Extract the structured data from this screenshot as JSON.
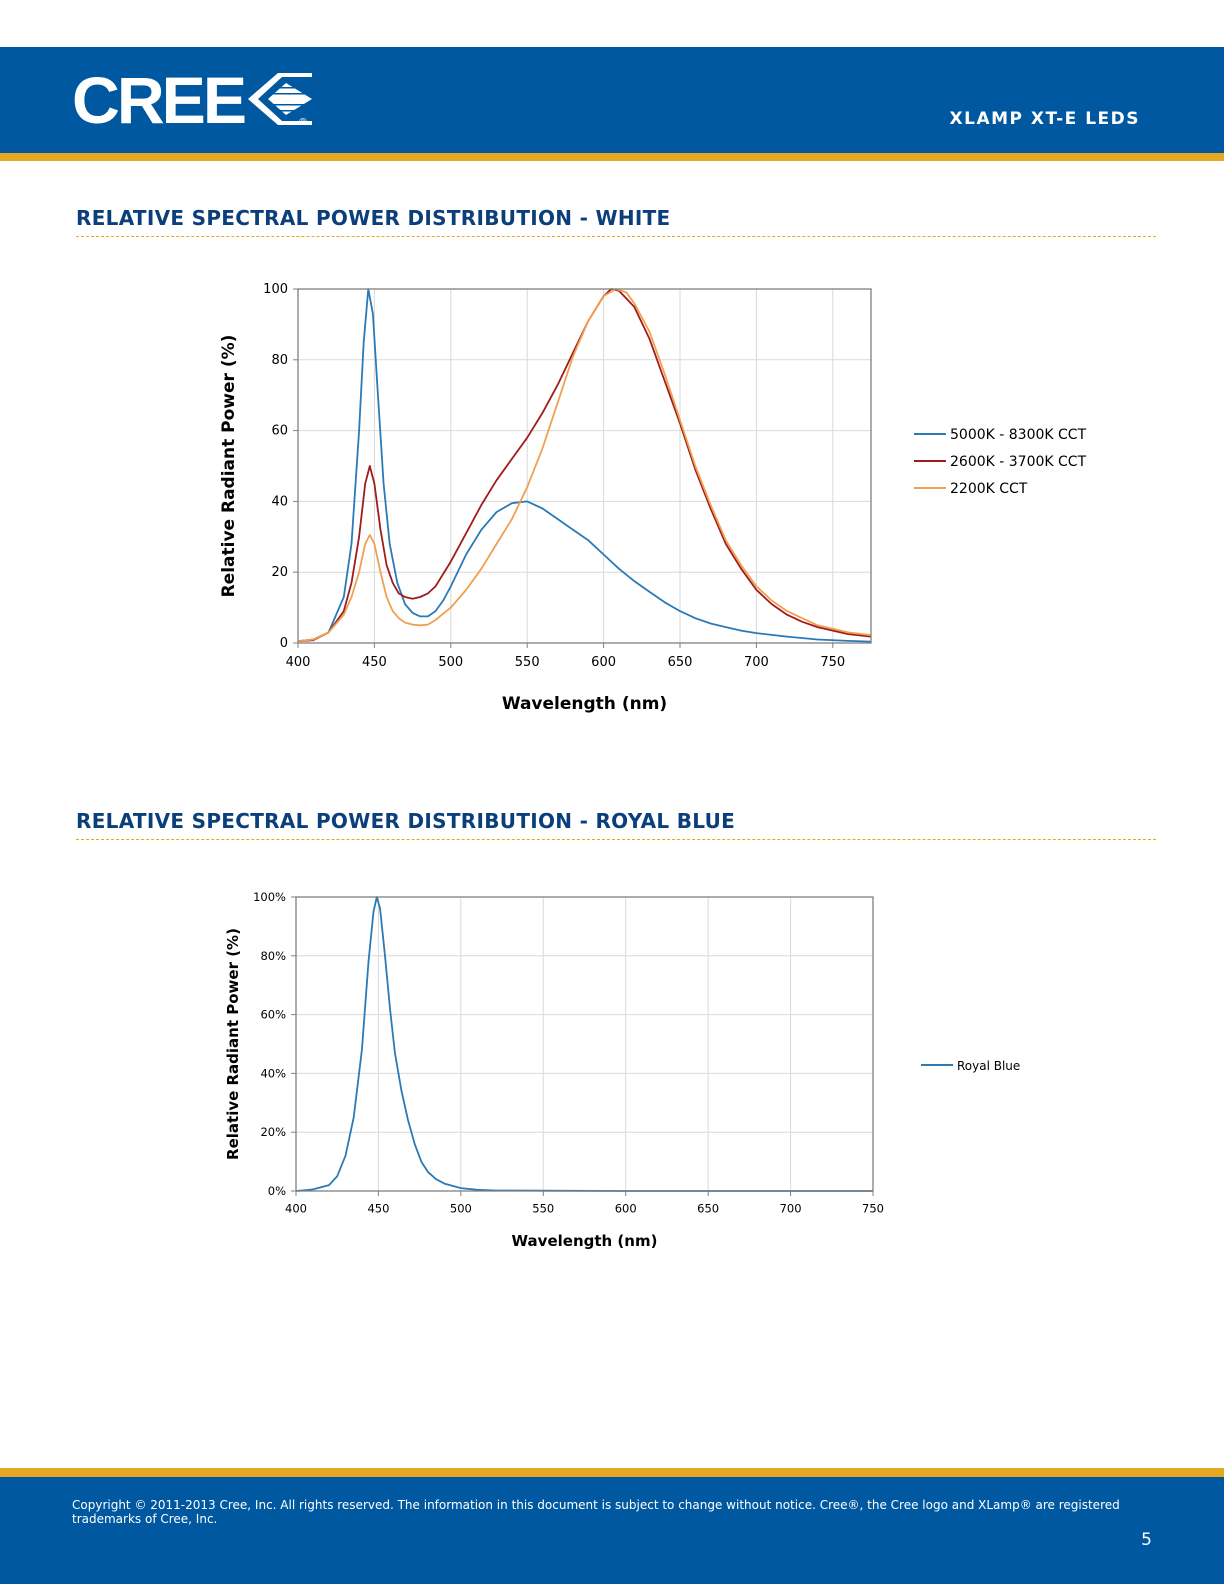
{
  "header": {
    "logo_text": "CREE",
    "logo_mark": "®",
    "doc_title": "XLAMP XT-E LEDS"
  },
  "sections": [
    {
      "title": "RELATIVE SPECTRAL POWER DISTRIBUTION - WHITE"
    },
    {
      "title": "RELATIVE SPECTRAL POWER DISTRIBUTION - ROYAL BLUE"
    }
  ],
  "colors": {
    "brand_blue": "#0059a0",
    "accent_gold": "#e5a823",
    "title_blue": "#0b3f7c",
    "series_cool": "#2a7ab8",
    "series_warm": "#a01c1c",
    "series_2200": "#f0a050"
  },
  "chart_data": [
    {
      "type": "line",
      "xlabel": "Wavelength (nm)",
      "ylabel": "Relative Radiant Power (%)",
      "xlim": [
        400,
        775
      ],
      "ylim": [
        0,
        100
      ],
      "x_ticks": [
        400,
        450,
        500,
        550,
        600,
        650,
        700,
        750
      ],
      "y_ticks": [
        0,
        20,
        40,
        60,
        80,
        100
      ],
      "y_tick_labels": [
        "0",
        "20",
        "40",
        "60",
        "80",
        "100"
      ],
      "grid": true,
      "legend_placement": "right",
      "series": [
        {
          "name": "5000K - 8300K CCT",
          "color": "#2a7ab8",
          "points": [
            [
              400,
              0.5
            ],
            [
              410,
              1
            ],
            [
              420,
              3
            ],
            [
              430,
              13
            ],
            [
              435,
              28
            ],
            [
              440,
              60
            ],
            [
              443,
              85
            ],
            [
              446,
              100
            ],
            [
              449,
              93
            ],
            [
              452,
              72
            ],
            [
              456,
              45
            ],
            [
              460,
              28
            ],
            [
              465,
              17
            ],
            [
              470,
              11
            ],
            [
              475,
              8.5
            ],
            [
              480,
              7.5
            ],
            [
              485,
              7.5
            ],
            [
              490,
              9
            ],
            [
              495,
              12
            ],
            [
              500,
              16
            ],
            [
              510,
              25
            ],
            [
              520,
              32
            ],
            [
              530,
              37
            ],
            [
              540,
              39.5
            ],
            [
              550,
              40
            ],
            [
              560,
              38
            ],
            [
              570,
              35
            ],
            [
              580,
              32
            ],
            [
              590,
              29
            ],
            [
              600,
              25
            ],
            [
              610,
              21
            ],
            [
              620,
              17.5
            ],
            [
              630,
              14.5
            ],
            [
              640,
              11.5
            ],
            [
              650,
              9
            ],
            [
              660,
              7
            ],
            [
              670,
              5.5
            ],
            [
              680,
              4.5
            ],
            [
              690,
              3.5
            ],
            [
              700,
              2.8
            ],
            [
              720,
              1.8
            ],
            [
              740,
              1
            ],
            [
              760,
              0.6
            ],
            [
              775,
              0.4
            ]
          ]
        },
        {
          "name": "2600K - 3700K CCT",
          "color": "#a01c1c",
          "points": [
            [
              400,
              0.5
            ],
            [
              410,
              0.8
            ],
            [
              420,
              3
            ],
            [
              430,
              9
            ],
            [
              435,
              17
            ],
            [
              440,
              30
            ],
            [
              444,
              45
            ],
            [
              447,
              50
            ],
            [
              450,
              45
            ],
            [
              454,
              32
            ],
            [
              458,
              22
            ],
            [
              462,
              17
            ],
            [
              466,
              14
            ],
            [
              470,
              13
            ],
            [
              475,
              12.5
            ],
            [
              480,
              13
            ],
            [
              485,
              14
            ],
            [
              490,
              16
            ],
            [
              500,
              23
            ],
            [
              510,
              31
            ],
            [
              520,
              39
            ],
            [
              530,
              46
            ],
            [
              540,
              52
            ],
            [
              550,
              58
            ],
            [
              560,
              65
            ],
            [
              570,
              73
            ],
            [
              580,
              82
            ],
            [
              590,
              91
            ],
            [
              600,
              98
            ],
            [
              605,
              100
            ],
            [
              610,
              99.5
            ],
            [
              620,
              95
            ],
            [
              630,
              86
            ],
            [
              640,
              74
            ],
            [
              650,
              62
            ],
            [
              660,
              49
            ],
            [
              670,
              38
            ],
            [
              680,
              28
            ],
            [
              690,
              21
            ],
            [
              700,
              15
            ],
            [
              710,
              11
            ],
            [
              720,
              8
            ],
            [
              730,
              6
            ],
            [
              740,
              4.5
            ],
            [
              750,
              3.5
            ],
            [
              760,
              2.5
            ],
            [
              775,
              1.8
            ]
          ]
        },
        {
          "name": "2200K CCT",
          "color": "#f0a050",
          "points": [
            [
              400,
              0.5
            ],
            [
              410,
              1
            ],
            [
              420,
              3
            ],
            [
              430,
              8
            ],
            [
              435,
              13
            ],
            [
              440,
              20
            ],
            [
              444,
              28
            ],
            [
              447,
              30.5
            ],
            [
              450,
              28
            ],
            [
              454,
              20
            ],
            [
              458,
              13
            ],
            [
              462,
              9
            ],
            [
              466,
              7
            ],
            [
              470,
              5.8
            ],
            [
              475,
              5.2
            ],
            [
              480,
              5
            ],
            [
              485,
              5.2
            ],
            [
              490,
              6.5
            ],
            [
              500,
              10
            ],
            [
              510,
              15
            ],
            [
              520,
              21
            ],
            [
              530,
              28
            ],
            [
              540,
              35
            ],
            [
              550,
              44
            ],
            [
              560,
              55
            ],
            [
              570,
              68
            ],
            [
              580,
              81
            ],
            [
              590,
              91
            ],
            [
              600,
              98
            ],
            [
              608,
              100
            ],
            [
              615,
              99
            ],
            [
              620,
              96
            ],
            [
              630,
              88
            ],
            [
              640,
              76
            ],
            [
              650,
              63
            ],
            [
              660,
              50
            ],
            [
              670,
              39
            ],
            [
              680,
              29
            ],
            [
              690,
              22
            ],
            [
              700,
              16
            ],
            [
              710,
              12
            ],
            [
              720,
              9
            ],
            [
              730,
              7
            ],
            [
              740,
              5
            ],
            [
              750,
              4
            ],
            [
              760,
              3
            ],
            [
              775,
              2.2
            ]
          ]
        }
      ]
    },
    {
      "type": "line",
      "xlabel": "Wavelength (nm)",
      "ylabel": "Relative Radiant Power (%)",
      "xlim": [
        400,
        750
      ],
      "ylim": [
        0,
        100
      ],
      "x_ticks": [
        400,
        450,
        500,
        550,
        600,
        650,
        700,
        750
      ],
      "y_ticks": [
        0,
        20,
        40,
        60,
        80,
        100
      ],
      "y_tick_labels": [
        "0%",
        "20%",
        "40%",
        "60%",
        "80%",
        "100%"
      ],
      "grid": true,
      "legend_placement": "right",
      "series": [
        {
          "name": "Royal Blue",
          "color": "#2a7ab8",
          "points": [
            [
              400,
              0
            ],
            [
              410,
              0.5
            ],
            [
              420,
              2
            ],
            [
              425,
              5
            ],
            [
              430,
              12
            ],
            [
              435,
              25
            ],
            [
              440,
              48
            ],
            [
              444,
              78
            ],
            [
              447,
              95
            ],
            [
              449,
              100
            ],
            [
              451,
              96
            ],
            [
              454,
              80
            ],
            [
              457,
              62
            ],
            [
              460,
              47
            ],
            [
              464,
              34
            ],
            [
              468,
              24
            ],
            [
              472,
              16
            ],
            [
              476,
              10
            ],
            [
              480,
              6.5
            ],
            [
              485,
              4
            ],
            [
              490,
              2.5
            ],
            [
              500,
              1
            ],
            [
              510,
              0.4
            ],
            [
              520,
              0.2
            ],
            [
              550,
              0.1
            ],
            [
              600,
              0
            ],
            [
              650,
              0
            ],
            [
              700,
              0
            ],
            [
              750,
              0
            ]
          ]
        }
      ]
    }
  ],
  "footer": {
    "copyright_line1": "Copyright © 2011-2013 Cree, Inc. All rights reserved. The information in this document is subject to change without notice. Cree®, the Cree logo and XLamp® are registered",
    "copyright_line2": "trademarks  of Cree, Inc.",
    "page_number": "5"
  }
}
